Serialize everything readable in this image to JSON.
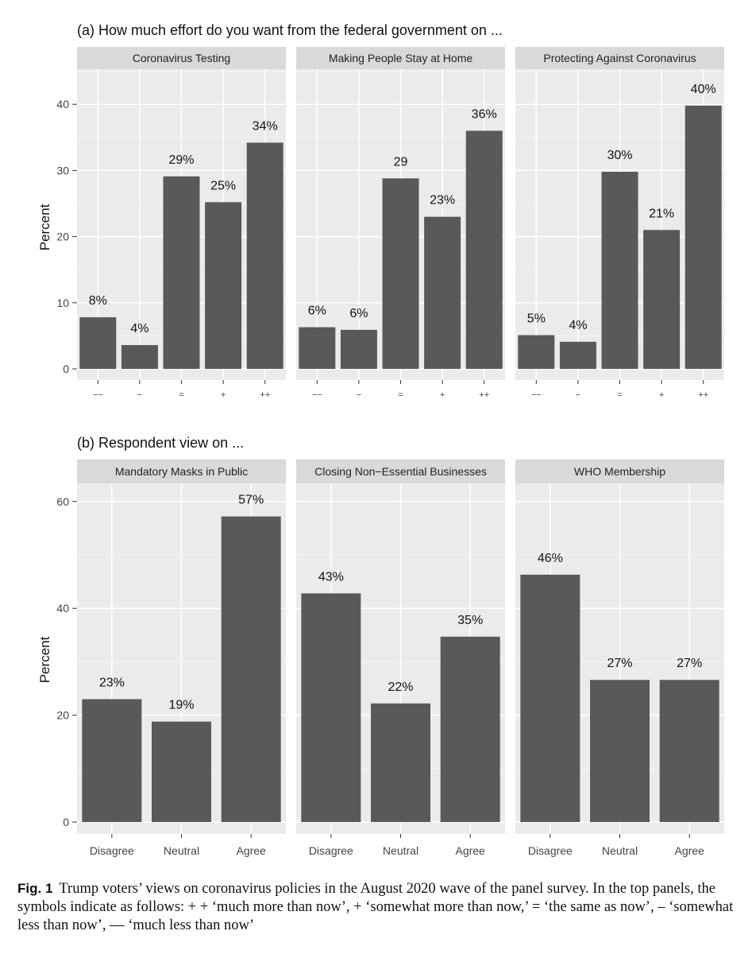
{
  "chart_data": [
    {
      "type": "bar",
      "title": "(a) How much effort do you want from the federal government on ...",
      "ylabel": "Percent",
      "xlabel": "",
      "ylim": [
        0,
        42
      ],
      "yticks": [
        0,
        10,
        20,
        30,
        40
      ],
      "grid": true,
      "categories": [
        "−−",
        "−",
        "=",
        "+",
        "++"
      ],
      "series": [
        {
          "name": "Coronavirus Testing",
          "values": [
            8,
            4,
            29,
            25,
            34
          ],
          "labels": [
            "8%",
            "4%",
            "29%",
            "25%",
            "34%"
          ],
          "bar_values": [
            7.8,
            3.6,
            29.1,
            25.2,
            34.2
          ]
        },
        {
          "name": "Making People Stay at Home",
          "values": [
            6,
            6,
            29,
            23,
            36
          ],
          "labels": [
            "6%",
            "6%",
            "29",
            "23%",
            "36%"
          ],
          "bar_values": [
            6.3,
            5.9,
            28.8,
            23.0,
            36.0
          ]
        },
        {
          "name": "Protecting Against Coronavirus",
          "values": [
            5,
            4,
            30,
            21,
            40
          ],
          "labels": [
            "5%",
            "4%",
            "30%",
            "21%",
            "40%"
          ],
          "bar_values": [
            5.1,
            4.1,
            29.8,
            21.0,
            39.8
          ]
        }
      ]
    },
    {
      "type": "bar",
      "title": "(b) Respondent view on ...",
      "ylabel": "Percent",
      "xlabel": "",
      "ylim": [
        0,
        62
      ],
      "yticks": [
        0,
        20,
        40,
        60
      ],
      "grid": true,
      "categories": [
        "Disagree",
        "Neutral",
        "Agree"
      ],
      "series": [
        {
          "name": "Mandatory Masks in Public",
          "values": [
            23,
            19,
            57
          ],
          "labels": [
            "23%",
            "19%",
            "57%"
          ],
          "bar_values": [
            23.0,
            18.8,
            57.2
          ]
        },
        {
          "name": "Closing Non−Essential Businesses",
          "values": [
            43,
            22,
            35
          ],
          "labels": [
            "43%",
            "22%",
            "35%"
          ],
          "bar_values": [
            42.8,
            22.2,
            34.7
          ]
        },
        {
          "name": "WHO Membership",
          "values": [
            46,
            27,
            27
          ],
          "labels": [
            "46%",
            "27%",
            "27%"
          ],
          "bar_values": [
            46.3,
            26.6,
            26.6
          ]
        }
      ]
    }
  ],
  "colors": {
    "bar": "#595959",
    "panel_bg": "#ebebeb",
    "strip_bg": "#d9d9d9",
    "grid": "#ffffff"
  },
  "caption": {
    "label": "Fig. 1",
    "text": "Trump voters’ views on coronavirus policies in the August 2020 wave of the panel survey. In the top panels, the symbols indicate as follows: + + ‘much more than now’, + ‘somewhat more than now,’ = ‘the same as now’, – ‘somewhat less than now’, — ‘much less than now’"
  }
}
